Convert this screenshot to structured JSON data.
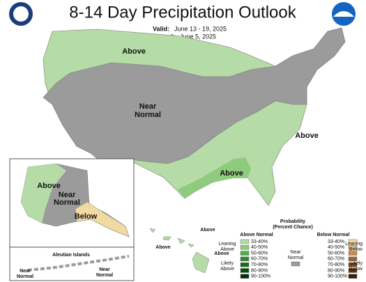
{
  "header": {
    "title": "8-14 Day Precipitation Outlook",
    "valid_label": "Valid:",
    "valid": "June 13 - 19, 2025",
    "issued_label": "Issued:",
    "issued": "June 5, 2025"
  },
  "conus_labels": [
    [
      "Above"
    ],
    [
      "Near",
      "Normal"
    ],
    [
      "Above"
    ],
    [
      "Above"
    ]
  ],
  "alaska_labels": [
    [
      "Above"
    ],
    [
      "Near",
      "Normal"
    ],
    [
      "Below"
    ]
  ],
  "aleutians": {
    "title": "Aleutian Islands",
    "labels": [
      [
        "Near",
        "Normal"
      ],
      [
        "Near",
        "Normal"
      ]
    ]
  },
  "hawaii_labels": [
    "Above",
    "Above",
    "Above"
  ],
  "legend": {
    "title": [
      "Probability",
      "(Percent Chance)"
    ],
    "above_header": "Above Normal",
    "below_header": "Below Normal",
    "above": {
      "leaning": [
        "Leaning",
        "Above"
      ],
      "likely": [
        "Likely",
        "Above"
      ],
      "bins": [
        {
          "label": "33-40%",
          "color": "#b5dca6"
        },
        {
          "label": "40-50%",
          "color": "#8fcb7d"
        },
        {
          "label": "50-60%",
          "color": "#4dab48"
        },
        {
          "label": "60-70%",
          "color": "#2f8a2f"
        },
        {
          "label": "70-80%",
          "color": "#1c6b20"
        },
        {
          "label": "80-90%",
          "color": "#0d4c13"
        },
        {
          "label": "90-100%",
          "color": "#06300b"
        }
      ]
    },
    "below": {
      "leaning": [
        "Leaning",
        "Below"
      ],
      "likely": [
        "Likely",
        "Below"
      ],
      "bins": [
        {
          "label": "33-40%",
          "color": "#f1d9a2"
        },
        {
          "label": "40-50%",
          "color": "#e2b777"
        },
        {
          "label": "50-60%",
          "color": "#c98a4b"
        },
        {
          "label": "60-70%",
          "color": "#a2622e"
        },
        {
          "label": "70-80%",
          "color": "#7b4420"
        },
        {
          "label": "80-90%",
          "color": "#57300f"
        },
        {
          "label": "90-100%",
          "color": "#3a1f08"
        }
      ]
    },
    "near": {
      "label": [
        "Near",
        "Normal"
      ],
      "color": "#9b9b9b"
    }
  }
}
